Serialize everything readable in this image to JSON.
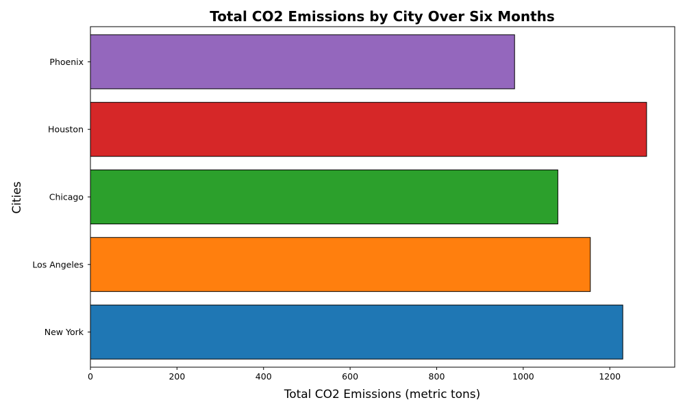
{
  "chart_data": {
    "type": "bar",
    "orientation": "horizontal",
    "title": "Total CO2 Emissions by City Over Six Months",
    "xlabel": "Total CO2 Emissions (metric tons)",
    "ylabel": "Cities",
    "categories": [
      "New York",
      "Los Angeles",
      "Chicago",
      "Houston",
      "Phoenix"
    ],
    "values": [
      1230,
      1155,
      1080,
      1285,
      980
    ],
    "colors": [
      "#1f77b4",
      "#ff7f0e",
      "#2ca02c",
      "#d62728",
      "#9467bd"
    ],
    "bar_edge_color": "#000000",
    "xlim": [
      0,
      1350
    ],
    "xticks": [
      0,
      200,
      400,
      600,
      800,
      1000,
      1200
    ],
    "grid": false,
    "legend": "none"
  }
}
